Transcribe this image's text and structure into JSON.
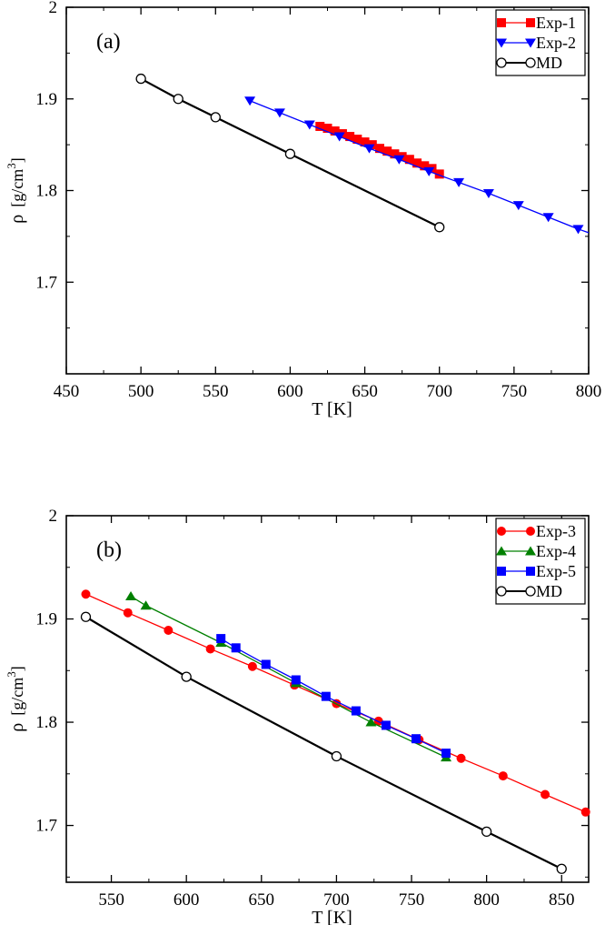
{
  "chart_data": [
    {
      "type": "line",
      "panel_label": "(a)",
      "xlabel": "T [K]",
      "ylabel_main": "ρ",
      "ylabel_unit": "[g/cm",
      "ylabel_sup": "3",
      "ylabel_close": "]",
      "xlim": [
        450,
        800
      ],
      "ylim": [
        1.6,
        2.0
      ],
      "xticks": [
        450,
        500,
        550,
        600,
        650,
        700,
        750,
        800
      ],
      "xtick_labels": [
        "450",
        "500",
        "550",
        "600",
        "650",
        "700",
        "750",
        "800"
      ],
      "yticks": [
        1.7,
        1.8,
        1.9,
        2.0
      ],
      "ytick_labels": [
        "1.7",
        "1.8",
        "1.9",
        "2"
      ],
      "legend_position": "top-right",
      "series": [
        {
          "name": "Exp-1",
          "color": "#ff0000",
          "marker": "square",
          "x": [
            620,
            625,
            630,
            635,
            640,
            645,
            650,
            655,
            660,
            665,
            670,
            675,
            680,
            685,
            690,
            695,
            700
          ],
          "y": [
            1.87,
            1.868,
            1.865,
            1.862,
            1.859,
            1.856,
            1.853,
            1.85,
            1.846,
            1.843,
            1.84,
            1.837,
            1.834,
            1.83,
            1.827,
            1.824,
            1.818
          ]
        },
        {
          "name": "Exp-2",
          "color": "#0000ff",
          "marker": "triangle-down",
          "x": [
            573,
            593,
            613,
            633,
            653,
            673,
            693,
            713,
            733,
            753,
            773,
            793
          ],
          "y": [
            1.898,
            1.885,
            1.872,
            1.859,
            1.846,
            1.834,
            1.821,
            1.809,
            1.797,
            1.784,
            1.771,
            1.758
          ],
          "line_to": [
            800,
            1.754
          ]
        },
        {
          "name": "MD",
          "color": "#000000",
          "marker": "circle-open",
          "x": [
            500,
            525,
            550,
            600,
            700
          ],
          "y": [
            1.922,
            1.9,
            1.88,
            1.84,
            1.76
          ]
        }
      ]
    },
    {
      "type": "line",
      "panel_label": "(b)",
      "xlabel": "T [K]",
      "ylabel_main": "ρ",
      "ylabel_unit": "[g/cm",
      "ylabel_sup": "3",
      "ylabel_close": "]",
      "xlim": [
        520,
        868
      ],
      "ylim": [
        1.645,
        2.0
      ],
      "xticks": [
        550,
        600,
        650,
        700,
        750,
        800,
        850
      ],
      "xtick_labels": [
        "550",
        "600",
        "650",
        "700",
        "750",
        "800",
        "850"
      ],
      "yticks": [
        1.7,
        1.8,
        1.9,
        2.0
      ],
      "ytick_labels": [
        "1.7",
        "1.8",
        "1.9",
        "2"
      ],
      "legend_position": "top-right",
      "series": [
        {
          "name": "Exp-3",
          "color": "#ff0000",
          "marker": "circle",
          "x": [
            533,
            561,
            588,
            616,
            644,
            672,
            700,
            728,
            755,
            783,
            811,
            839,
            866
          ],
          "y": [
            1.924,
            1.906,
            1.889,
            1.871,
            1.854,
            1.836,
            1.818,
            1.801,
            1.783,
            1.765,
            1.748,
            1.73,
            1.713
          ]
        },
        {
          "name": "Exp-4",
          "color": "#008000",
          "marker": "triangle-up",
          "x": [
            563,
            573,
            623,
            673,
            723,
            773
          ],
          "y": [
            1.922,
            1.913,
            1.877,
            1.838,
            1.8,
            1.766
          ]
        },
        {
          "name": "Exp-5",
          "color": "#0000ff",
          "marker": "square",
          "x": [
            623,
            633,
            653,
            673,
            693,
            713,
            733,
            753,
            773
          ],
          "y": [
            1.881,
            1.872,
            1.856,
            1.841,
            1.825,
            1.811,
            1.797,
            1.784,
            1.77
          ]
        },
        {
          "name": "MD",
          "color": "#000000",
          "marker": "circle-open",
          "x": [
            533,
            600,
            700,
            800,
            850
          ],
          "y": [
            1.902,
            1.844,
            1.767,
            1.694,
            1.658
          ]
        }
      ]
    }
  ]
}
